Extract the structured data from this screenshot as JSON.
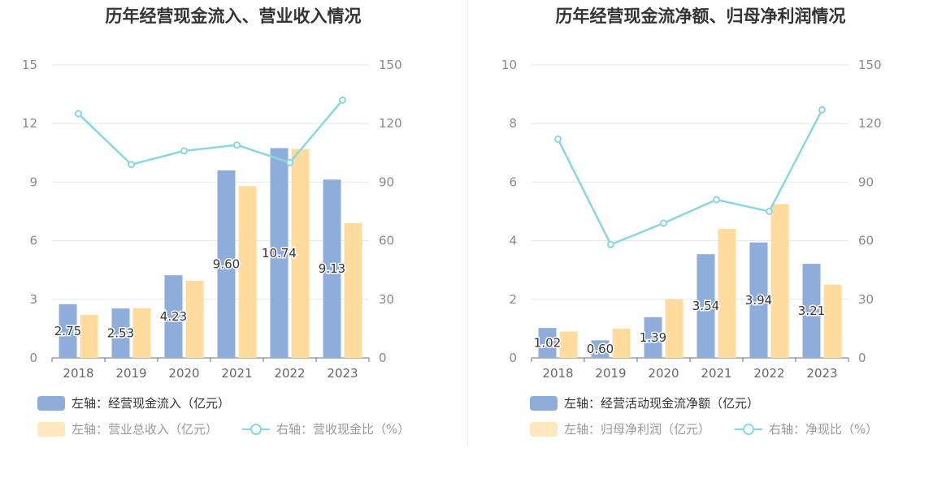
{
  "colors": {
    "bar1": "#8eadda",
    "bar2": "#ffdc9e",
    "line": "#8ad7e0",
    "grid": "#e3e7f0"
  },
  "charts": [
    {
      "title": "历年经营现金流入、营业收入情况",
      "legend": {
        "bar1": "左轴：经营现金流入（亿元）",
        "bar2": "左轴：营业总收入（亿元）",
        "line": "右轴：营收现金比（%）"
      }
    },
    {
      "title": "历年经营现金流净额、归母净利润情况",
      "legend": {
        "bar1": "左轴：经营活动现金流净额（亿元）",
        "bar2": "左轴：归母净利润（亿元）",
        "line": "右轴：净现比（%）"
      }
    }
  ],
  "chart_data": [
    {
      "type": "bar",
      "title": "历年经营现金流入、营业收入情况",
      "categories": [
        "2018",
        "2019",
        "2020",
        "2021",
        "2022",
        "2023"
      ],
      "y_left": {
        "min": 0,
        "max": 15,
        "ticks": [
          "0",
          "3",
          "6",
          "9",
          "12",
          "15"
        ]
      },
      "y_right": {
        "min": 0,
        "max": 150,
        "ticks": [
          "0",
          "30",
          "60",
          "90",
          "120",
          "150"
        ]
      },
      "series": [
        {
          "name": "左轴：经营现金流入（亿元）",
          "type": "bar",
          "axis": "left",
          "values": [
            2.75,
            2.53,
            4.23,
            9.6,
            10.74,
            9.13
          ],
          "labels": [
            "2.75",
            "2.53",
            "4.23",
            "9.60",
            "10.74",
            "9.13"
          ]
        },
        {
          "name": "左轴：营业总收入（亿元）",
          "type": "bar",
          "axis": "left",
          "values": [
            2.2,
            2.55,
            3.95,
            8.8,
            10.7,
            6.9
          ]
        },
        {
          "name": "右轴：营收现金比（%）",
          "type": "line",
          "axis": "right",
          "values": [
            125,
            99,
            106,
            109,
            100,
            132
          ]
        }
      ],
      "grid": true,
      "legend_position": "bottom-left"
    },
    {
      "type": "bar",
      "title": "历年经营现金流净额、归母净利润情况",
      "categories": [
        "2018",
        "2019",
        "2020",
        "2021",
        "2022",
        "2023"
      ],
      "y_left": {
        "min": 0,
        "max": 10,
        "ticks": [
          "0",
          "2",
          "4",
          "6",
          "8",
          "10"
        ]
      },
      "y_right": {
        "min": 0,
        "max": 150,
        "ticks": [
          "0",
          "30",
          "60",
          "90",
          "120",
          "150"
        ]
      },
      "series": [
        {
          "name": "左轴：经营活动现金流净额（亿元）",
          "type": "bar",
          "axis": "left",
          "values": [
            1.02,
            0.6,
            1.39,
            3.54,
            3.94,
            3.21
          ],
          "labels": [
            "1.02",
            "0.60",
            "1.39",
            "3.54",
            "3.94",
            "3.21"
          ]
        },
        {
          "name": "左轴：归母净利润（亿元）",
          "type": "bar",
          "axis": "left",
          "values": [
            0.9,
            1.0,
            2.0,
            4.4,
            5.25,
            2.5
          ]
        },
        {
          "name": "右轴：净现比（%）",
          "type": "line",
          "axis": "right",
          "values": [
            112,
            58,
            69,
            81,
            75,
            127
          ]
        }
      ],
      "grid": true,
      "legend_position": "bottom-left"
    }
  ]
}
